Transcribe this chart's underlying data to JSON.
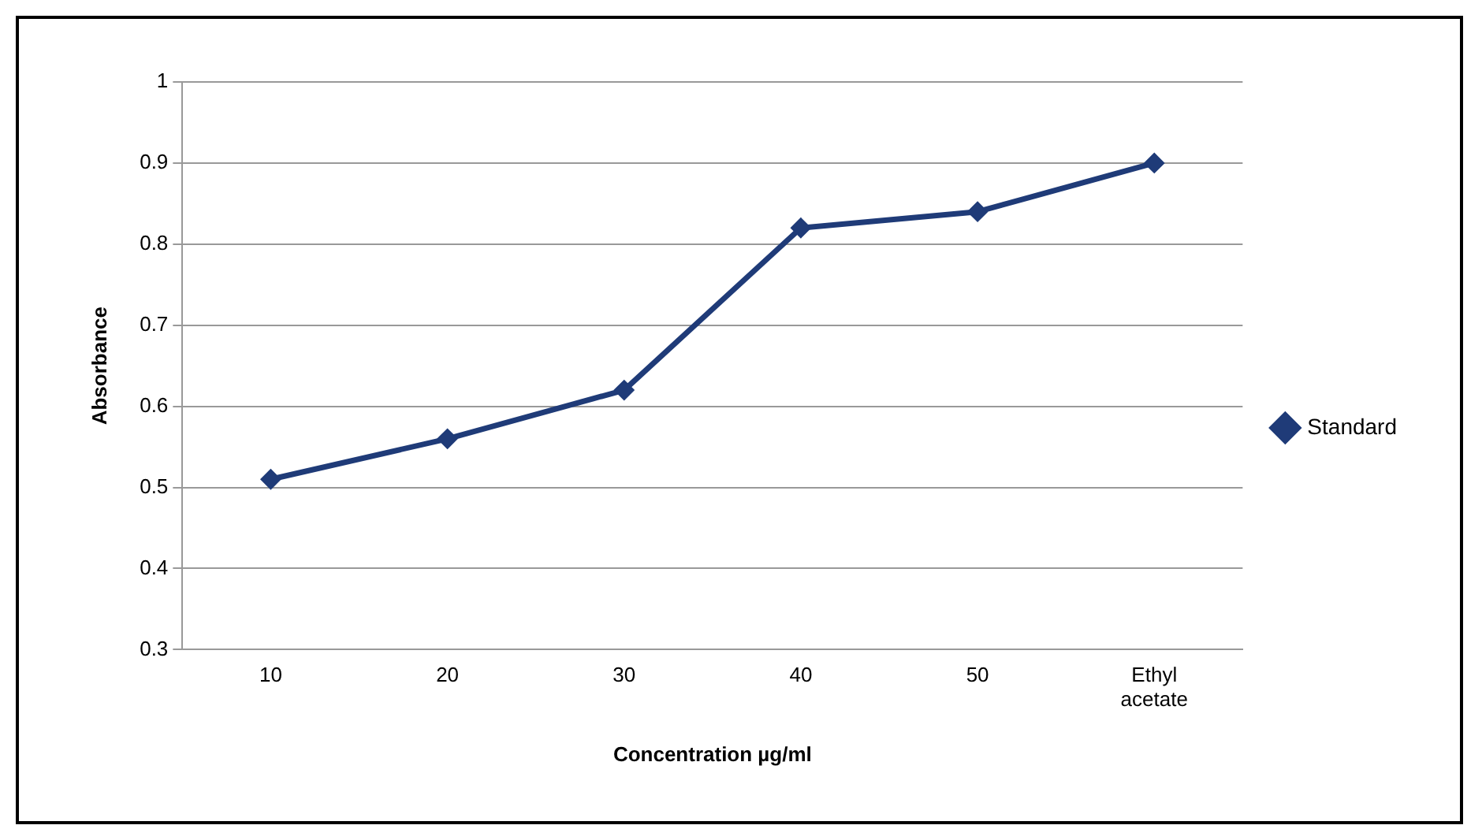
{
  "chart_data": {
    "type": "line",
    "xlabel": "Concentration µg/ml",
    "ylabel": "Absorbance",
    "categories": [
      "10",
      "20",
      "30",
      "40",
      "50",
      "Ethyl acetate"
    ],
    "series": [
      {
        "name": "Standard",
        "color": "#1f3b78",
        "values": [
          0.51,
          0.56,
          0.62,
          0.82,
          0.84,
          0.9
        ]
      }
    ],
    "ylim": [
      0.3,
      1
    ],
    "yticks": [
      0.3,
      0.4,
      0.5,
      0.6,
      0.7,
      0.8,
      0.9,
      1
    ],
    "grid": "y",
    "legend": "right",
    "marker": "diamond",
    "line_style": "solid"
  }
}
